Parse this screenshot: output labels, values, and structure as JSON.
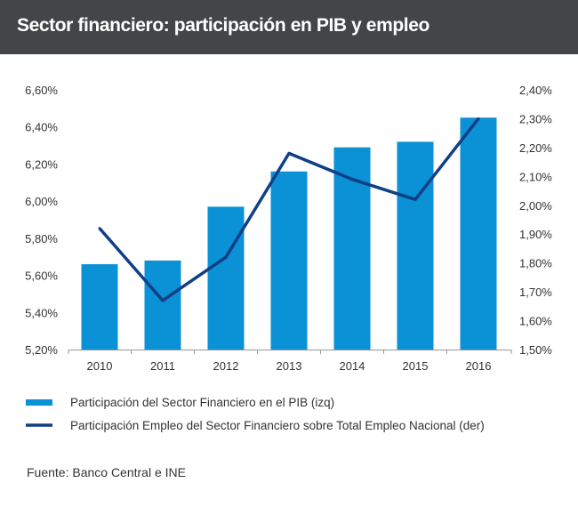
{
  "header": {
    "title": "Sector financiero: participación en PIB y empleo"
  },
  "colors": {
    "bar": "#0b91d5",
    "line": "#0f3f86",
    "header_bg": "#434548"
  },
  "chart_data": {
    "type": "bar",
    "title": "Sector financiero: participación en PIB y empleo",
    "categories": [
      "2010",
      "2011",
      "2012",
      "2013",
      "2014",
      "2015",
      "2016"
    ],
    "y_left": {
      "ticks": [
        "5,20%",
        "5,40%",
        "5,60%",
        "5,80%",
        "6,00%",
        "6,20%",
        "6,40%",
        "6,60%"
      ],
      "ylim": [
        5.2,
        6.6
      ]
    },
    "y_right": {
      "ticks": [
        "1,50%",
        "1,60%",
        "1,70%",
        "1,80%",
        "1,90%",
        "2,00%",
        "2,10%",
        "2,20%",
        "2,30%",
        "2,40%"
      ],
      "ylim": [
        1.5,
        2.4
      ]
    },
    "series": [
      {
        "name": "Participación del Sector Financiero en el PIB (izq)",
        "type": "bar",
        "axis": "left",
        "values": [
          5.66,
          5.68,
          5.97,
          6.16,
          6.29,
          6.32,
          6.45
        ]
      },
      {
        "name": "Participación Empleo del Sector Financiero sobre Total Empleo Nacional (der)",
        "type": "line",
        "axis": "right",
        "values": [
          1.92,
          1.67,
          1.82,
          2.18,
          2.09,
          2.02,
          2.3
        ]
      }
    ],
    "grid": false,
    "legend_position": "bottom"
  },
  "source": "Fuente: Banco Central e INE"
}
